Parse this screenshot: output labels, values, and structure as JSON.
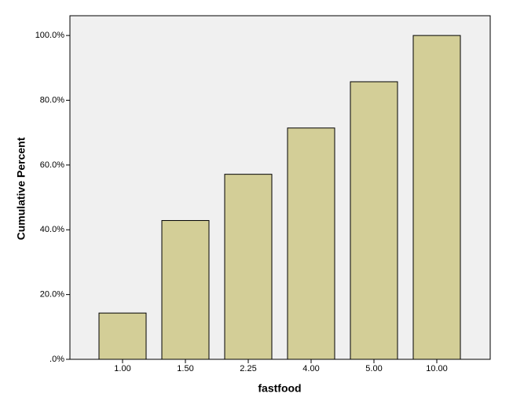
{
  "chart_data": {
    "type": "bar",
    "x_label": "fastfood",
    "y_label": "Cumulative Percent",
    "categories": [
      "1.00",
      "1.50",
      "2.25",
      "4.00",
      "5.00",
      "10.00"
    ],
    "values": [
      14.29,
      42.86,
      57.14,
      71.43,
      85.71,
      100
    ],
    "color": "#d3ce97",
    "ylim": [
      0,
      106.1
    ],
    "yticks": [
      {
        "value": 0,
        "label": ".0%"
      },
      {
        "value": 20,
        "label": "20.0%"
      },
      {
        "value": 40,
        "label": "40.0%"
      },
      {
        "value": 60,
        "label": "60.0%"
      },
      {
        "value": 80,
        "label": "80.0%"
      },
      {
        "value": 100,
        "label": "100.0%"
      }
    ],
    "grid": false
  }
}
